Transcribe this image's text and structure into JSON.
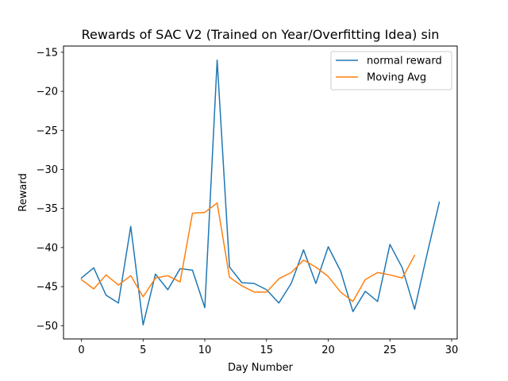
{
  "chart_data": {
    "type": "line",
    "title": "Rewards of SAC V2 (Trained on Year/Overfitting Idea) sin",
    "xlabel": "Day Number",
    "ylabel": "Reward",
    "xlim": [
      -1.45,
      30.45
    ],
    "ylim": [
      -51.7,
      -14.2
    ],
    "xticks": [
      0,
      5,
      10,
      15,
      20,
      25,
      30
    ],
    "yticks": [
      -50,
      -45,
      -40,
      -35,
      -30,
      -25,
      -20,
      -15
    ],
    "grid": false,
    "legend_position": "upper right",
    "series": [
      {
        "name": "normal reward",
        "color": "#1f77b4",
        "x": [
          0,
          1,
          2,
          3,
          4,
          5,
          6,
          7,
          8,
          9,
          10,
          11,
          12,
          13,
          14,
          15,
          16,
          17,
          18,
          19,
          20,
          21,
          22,
          23,
          24,
          25,
          26,
          27,
          28,
          29
        ],
        "values": [
          -43.9,
          -42.6,
          -46.1,
          -47.1,
          -37.3,
          -49.9,
          -43.4,
          -45.4,
          -42.7,
          -42.9,
          -47.7,
          -16.0,
          -42.5,
          -44.5,
          -44.6,
          -45.4,
          -47.1,
          -44.6,
          -40.3,
          -44.6,
          -39.9,
          -43.0,
          -48.2,
          -45.6,
          -46.9,
          -39.6,
          -42.6,
          -47.9,
          -40.9,
          -34.2
        ]
      },
      {
        "name": "Moving Avg",
        "color": "#ff7f0e",
        "x": [
          0,
          1,
          2,
          3,
          4,
          5,
          6,
          7,
          8,
          9,
          10,
          11,
          12,
          13,
          14,
          15,
          16,
          17,
          18,
          19,
          20,
          21,
          22,
          23,
          24,
          25,
          26,
          27
        ],
        "values": [
          -44.1,
          -45.3,
          -43.5,
          -44.8,
          -43.6,
          -46.3,
          -43.9,
          -43.6,
          -44.4,
          -35.6,
          -35.5,
          -34.3,
          -43.8,
          -44.9,
          -45.7,
          -45.7,
          -44.0,
          -43.2,
          -41.6,
          -42.5,
          -43.7,
          -45.7,
          -46.9,
          -44.1,
          -43.2,
          -43.5,
          -43.9,
          -41.0
        ]
      }
    ]
  }
}
